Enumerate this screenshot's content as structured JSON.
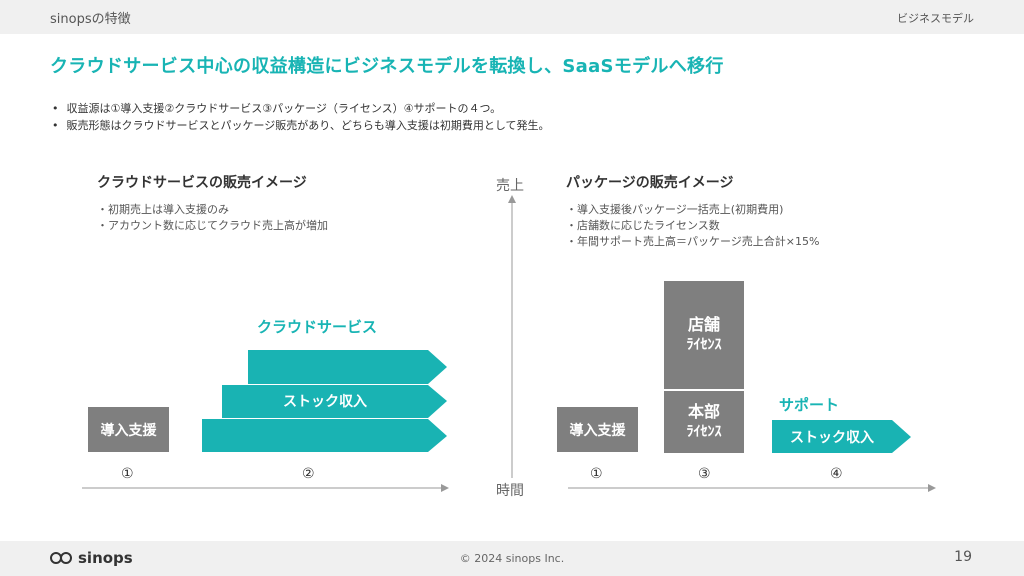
{
  "header": {
    "left": "sinopsの特徴",
    "right": "ビジネスモデル"
  },
  "headline": "クラウドサービス中心の収益構造にビジネスモデルを転換し、SaaSモデルへ移行",
  "bullets": [
    "収益源は①導入支援②クラウドサービス③パッケージ（ライセンス）④サポートの４つ。",
    "販売形態はクラウドサービスとパッケージ販売があり、どちらも導入支援は初期費用として発生。"
  ],
  "cloud": {
    "title": "クラウドサービスの販売イメージ",
    "notes": [
      "初期売上は導入支援のみ",
      "アカウント数に応じてクラウド売上高が増加"
    ],
    "label": "クラウドサービス",
    "arrow_label": "ストック収入",
    "box_label": "導入支援",
    "markers": [
      "①",
      "②"
    ]
  },
  "axis": {
    "y_label": "売上",
    "x_label": "時間"
  },
  "package": {
    "title": "パッケージの販売イメージ",
    "notes": [
      "導入支援後パッケージ一括売上(初期費用)",
      "店舗数に応じたライセンス数",
      "年間サポート売上高＝パッケージ売上合計×15%"
    ],
    "box_label": "導入支援",
    "store_line1": "店舗",
    "store_line2": "ﾗｲｾﾝｽ",
    "hq_line1": "本部",
    "hq_line2": "ﾗｲｾﾝｽ",
    "support_label": "サポート",
    "arrow_label": "ストック収入",
    "markers": [
      "①",
      "③",
      "④"
    ]
  },
  "footer": {
    "logo": "sinops",
    "copyright": "© 2024 sinops Inc.",
    "page": "19"
  },
  "colors": {
    "teal": "#19b3b3",
    "gray": "#7f7f7f",
    "header_bg": "#f0f0f0"
  }
}
